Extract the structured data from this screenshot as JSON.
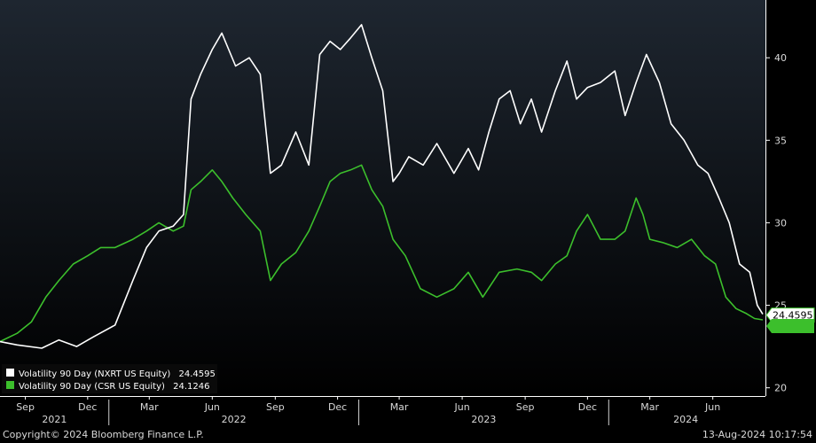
{
  "chart_data": {
    "type": "line",
    "title": "",
    "xlabel": "",
    "ylabel": "",
    "x_range": [
      "2021-07-26",
      "2024-08-13"
    ],
    "ylim": [
      19.5,
      43.5
    ],
    "y_ticks": [
      20,
      25,
      30,
      35,
      40
    ],
    "grid": false,
    "legend_position": "bottom-left",
    "x_tick_labels": [
      {
        "label": "Sep",
        "date": "2021-09-01"
      },
      {
        "label": "Dec",
        "date": "2021-12-01"
      },
      {
        "label": "Mar",
        "date": "2022-03-01"
      },
      {
        "label": "Jun",
        "date": "2022-06-01"
      },
      {
        "label": "Sep",
        "date": "2022-09-01"
      },
      {
        "label": "Dec",
        "date": "2022-12-01"
      },
      {
        "label": "Mar",
        "date": "2023-03-01"
      },
      {
        "label": "Jun",
        "date": "2023-06-01"
      },
      {
        "label": "Sep",
        "date": "2023-09-01"
      },
      {
        "label": "Dec",
        "date": "2023-12-01"
      },
      {
        "label": "Mar",
        "date": "2024-03-01"
      },
      {
        "label": "Jun",
        "date": "2024-06-01"
      }
    ],
    "year_labels": [
      {
        "label": "2021",
        "start": "2021-07-26",
        "end": "2022-01-01"
      },
      {
        "label": "2022",
        "start": "2022-01-01",
        "end": "2023-01-01"
      },
      {
        "label": "2023",
        "start": "2023-01-01",
        "end": "2024-01-01"
      },
      {
        "label": "2024",
        "start": "2024-01-01",
        "end": "2024-08-13"
      }
    ],
    "series": [
      {
        "name": "Volatility 90 Day (NXRT US Equity)",
        "legend_value": "24.4595",
        "last_value_label": "24.4595",
        "color": "#ffffff",
        "x": [
          "2021-07-26",
          "2021-08-20",
          "2021-09-25",
          "2021-10-20",
          "2021-11-15",
          "2021-12-10",
          "2022-01-10",
          "2022-02-05",
          "2022-02-25",
          "2022-03-15",
          "2022-04-05",
          "2022-04-20",
          "2022-05-01",
          "2022-05-15",
          "2022-06-01",
          "2022-06-15",
          "2022-07-05",
          "2022-07-25",
          "2022-08-10",
          "2022-08-25",
          "2022-09-10",
          "2022-10-01",
          "2022-10-20",
          "2022-11-05",
          "2022-11-20",
          "2022-12-05",
          "2022-12-20",
          "2023-01-05",
          "2023-01-20",
          "2023-02-05",
          "2023-02-20",
          "2023-03-01",
          "2023-03-15",
          "2023-04-05",
          "2023-04-25",
          "2023-05-20",
          "2023-06-10",
          "2023-06-25",
          "2023-07-10",
          "2023-07-25",
          "2023-08-10",
          "2023-08-25",
          "2023-09-10",
          "2023-09-25",
          "2023-10-15",
          "2023-11-01",
          "2023-11-15",
          "2023-12-01",
          "2023-12-20",
          "2024-01-10",
          "2024-01-25",
          "2024-02-10",
          "2024-02-25",
          "2024-03-15",
          "2024-04-01",
          "2024-04-20",
          "2024-05-10",
          "2024-05-25",
          "2024-06-10",
          "2024-06-25",
          "2024-07-10",
          "2024-07-25",
          "2024-08-05",
          "2024-08-13"
        ],
        "values": [
          22.8,
          22.6,
          22.4,
          22.9,
          22.5,
          23.1,
          23.8,
          26.5,
          28.5,
          29.5,
          29.8,
          30.5,
          37.5,
          39.0,
          40.5,
          41.5,
          39.5,
          40.0,
          39.0,
          33.0,
          33.5,
          35.5,
          33.5,
          40.2,
          41.0,
          40.5,
          41.2,
          42.0,
          40.0,
          38.0,
          32.5,
          33.0,
          34.0,
          33.5,
          34.8,
          33.0,
          34.5,
          33.2,
          35.5,
          37.5,
          38.0,
          36.0,
          37.5,
          35.5,
          38.0,
          39.8,
          37.5,
          38.2,
          38.5,
          39.2,
          36.5,
          38.5,
          40.2,
          38.5,
          36.0,
          35.0,
          33.5,
          33.0,
          31.5,
          30.0,
          27.5,
          27.0,
          25.0,
          24.46
        ]
      },
      {
        "name": "Volatility 90 Day (CSR US Equity)",
        "legend_value": "24.1246",
        "last_value_label": "24.1246",
        "color": "#3cbf2c",
        "x": [
          "2021-07-26",
          "2021-08-20",
          "2021-09-10",
          "2021-10-01",
          "2021-10-20",
          "2021-11-10",
          "2021-12-01",
          "2021-12-20",
          "2022-01-10",
          "2022-02-05",
          "2022-02-25",
          "2022-03-15",
          "2022-04-05",
          "2022-04-20",
          "2022-05-01",
          "2022-05-15",
          "2022-06-01",
          "2022-06-15",
          "2022-07-01",
          "2022-07-20",
          "2022-08-10",
          "2022-08-25",
          "2022-09-10",
          "2022-10-01",
          "2022-10-20",
          "2022-11-05",
          "2022-11-20",
          "2022-12-05",
          "2022-12-20",
          "2023-01-05",
          "2023-01-20",
          "2023-02-05",
          "2023-02-20",
          "2023-03-10",
          "2023-04-01",
          "2023-04-25",
          "2023-05-20",
          "2023-06-10",
          "2023-07-01",
          "2023-07-25",
          "2023-08-20",
          "2023-09-10",
          "2023-09-25",
          "2023-10-15",
          "2023-11-01",
          "2023-11-15",
          "2023-12-01",
          "2023-12-20",
          "2024-01-10",
          "2024-01-25",
          "2024-02-10",
          "2024-02-20",
          "2024-03-01",
          "2024-03-20",
          "2024-04-10",
          "2024-05-01",
          "2024-05-20",
          "2024-06-05",
          "2024-06-20",
          "2024-07-05",
          "2024-07-20",
          "2024-08-01",
          "2024-08-13"
        ],
        "values": [
          22.8,
          23.3,
          24.0,
          25.5,
          26.5,
          27.5,
          28.0,
          28.5,
          28.5,
          29.0,
          29.5,
          30.0,
          29.5,
          29.8,
          32.0,
          32.5,
          33.2,
          32.5,
          31.5,
          30.5,
          29.5,
          26.5,
          27.5,
          28.2,
          29.5,
          31.0,
          32.5,
          33.0,
          33.2,
          33.5,
          32.0,
          31.0,
          29.0,
          28.0,
          26.0,
          25.5,
          26.0,
          27.0,
          25.5,
          27.0,
          27.2,
          27.0,
          26.5,
          27.5,
          28.0,
          29.5,
          30.5,
          29.0,
          29.0,
          29.5,
          31.5,
          30.5,
          29.0,
          28.8,
          28.5,
          29.0,
          28.0,
          27.5,
          25.5,
          24.8,
          24.5,
          24.2,
          24.12
        ]
      }
    ]
  },
  "footer": {
    "copyright": "Copyright© 2024 Bloomberg Finance L.P.",
    "timestamp": "13-Aug-2024 10:17:54"
  },
  "colors": {
    "background_top": "#1e2630",
    "background_bottom": "#000000",
    "axis": "#ffffff",
    "text": "#d8d8d8"
  }
}
